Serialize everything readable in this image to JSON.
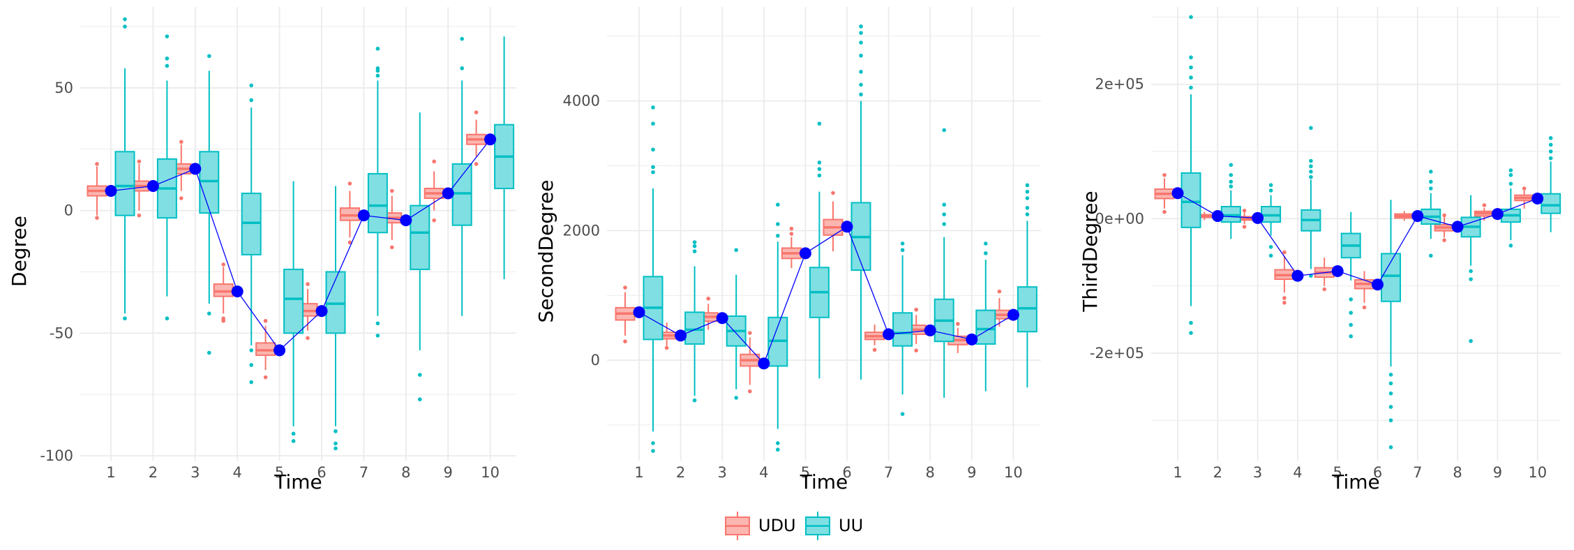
{
  "colors": {
    "UDU": "#F8766D",
    "UDU_fill": "#FBB6B1",
    "UU": "#00BFC4",
    "UU_fill": "#80DFE2",
    "mean_line": "#0000FF",
    "grid": "#EBEBEB"
  },
  "legend": {
    "placement": "bottom",
    "items": [
      {
        "key": "UDU",
        "label": "UDU"
      },
      {
        "key": "UU",
        "label": "UU"
      }
    ]
  },
  "chart_data": [
    {
      "type": "boxplot",
      "xlabel": "Time",
      "ylabel": "Degree",
      "categories": [
        "1",
        "2",
        "3",
        "4",
        "5",
        "6",
        "7",
        "8",
        "9",
        "10"
      ],
      "ylim": [
        -102,
        83
      ],
      "yticks": [
        -100,
        -50,
        0,
        50
      ],
      "ytick_labels": [
        "-100",
        "-50",
        "0",
        "50"
      ],
      "grid": true,
      "series": [
        {
          "name": "UDU",
          "boxes": [
            {
              "lw": -2,
              "q1": 6,
              "med": 8,
              "q3": 10,
              "uw": 18,
              "outliers": [
                -3,
                19
              ]
            },
            {
              "lw": 0,
              "q1": 8,
              "med": 10,
              "q3": 12,
              "uw": 19,
              "outliers": [
                -2,
                20
              ]
            },
            {
              "lw": 8,
              "q1": 15,
              "med": 17,
              "q3": 19,
              "uw": 27,
              "outliers": [
                5,
                28
              ]
            },
            {
              "lw": -42,
              "q1": -35,
              "med": -33,
              "q3": -30,
              "uw": -23,
              "outliers": [
                -45,
                -44,
                -22
              ]
            },
            {
              "lw": -65,
              "q1": -59,
              "med": -57,
              "q3": -54,
              "uw": -47,
              "outliers": [
                -68,
                -45
              ]
            },
            {
              "lw": -49,
              "q1": -43,
              "med": -41,
              "q3": -38,
              "uw": -32,
              "outliers": [
                -52,
                -30
              ]
            },
            {
              "lw": -11,
              "q1": -4,
              "med": -2,
              "q3": 1,
              "uw": 8,
              "outliers": [
                -13,
                11
              ]
            },
            {
              "lw": -12,
              "q1": -5,
              "med": -3,
              "q3": -1,
              "uw": 6,
              "outliers": [
                -15,
                8
              ]
            },
            {
              "lw": 0,
              "q1": 5,
              "med": 7,
              "q3": 9,
              "uw": 16,
              "outliers": [
                -4,
                20
              ]
            },
            {
              "lw": 22,
              "q1": 27,
              "med": 29,
              "q3": 31,
              "uw": 37,
              "outliers": [
                19,
                40
              ]
            }
          ]
        },
        {
          "name": "UU",
          "boxes": [
            {
              "lw": -42,
              "q1": -2,
              "med": 10,
              "q3": 24,
              "uw": 58,
              "outliers": [
                -44,
                75,
                78
              ]
            },
            {
              "lw": -35,
              "q1": -3,
              "med": 9,
              "q3": 21,
              "uw": 53,
              "outliers": [
                -44,
                59,
                62,
                71
              ]
            },
            {
              "lw": -38,
              "q1": -1,
              "med": 12,
              "q3": 24,
              "uw": 57,
              "outliers": [
                -42,
                -58,
                63
              ]
            },
            {
              "lw": -55,
              "q1": -18,
              "med": -5,
              "q3": 7,
              "uw": 42,
              "outliers": [
                -57,
                -63,
                -70,
                45,
                51
              ]
            },
            {
              "lw": -88,
              "q1": -50,
              "med": -36,
              "q3": -24,
              "uw": 12,
              "outliers": [
                -91,
                -94
              ]
            },
            {
              "lw": -88,
              "q1": -50,
              "med": -38,
              "q3": -25,
              "uw": 10,
              "outliers": [
                -90,
                -95,
                -97
              ]
            },
            {
              "lw": -43,
              "q1": -9,
              "med": 2,
              "q3": 15,
              "uw": 53,
              "outliers": [
                -46,
                -51,
                55,
                57,
                58,
                66
              ]
            },
            {
              "lw": -57,
              "q1": -24,
              "med": -9,
              "q3": 2,
              "uw": 40,
              "outliers": [
                -67,
                -77
              ]
            },
            {
              "lw": -43,
              "q1": -6,
              "med": 7,
              "q3": 19,
              "uw": 53,
              "outliers": [
                58,
                70
              ]
            },
            {
              "lw": -28,
              "q1": 9,
              "med": 22,
              "q3": 35,
              "uw": 71,
              "outliers": []
            }
          ]
        }
      ],
      "means": [
        8,
        10,
        17,
        -33,
        -57,
        -41,
        -2,
        -4,
        7,
        29
      ]
    },
    {
      "type": "boxplot",
      "xlabel": "Time",
      "ylabel": "SecondDegree",
      "categories": [
        "1",
        "2",
        "3",
        "4",
        "5",
        "6",
        "7",
        "8",
        "9",
        "10"
      ],
      "ylim": [
        -1550,
        5450
      ],
      "yticks": [
        0,
        2000,
        4000
      ],
      "ytick_labels": [
        "0",
        "2000",
        "4000"
      ],
      "grid": true,
      "series": [
        {
          "name": "UDU",
          "boxes": [
            {
              "lw": 380,
              "q1": 620,
              "med": 720,
              "q3": 810,
              "uw": 1050,
              "outliers": [
                290,
                1120
              ]
            },
            {
              "lw": 220,
              "q1": 330,
              "med": 380,
              "q3": 430,
              "uw": 580,
              "outliers": [
                190
              ]
            },
            {
              "lw": 470,
              "q1": 600,
              "med": 670,
              "q3": 730,
              "uw": 870,
              "outliers": [
                950
              ]
            },
            {
              "lw": -380,
              "q1": -90,
              "med": 0,
              "q3": 90,
              "uw": 350,
              "outliers": [
                -480,
                420
              ]
            },
            {
              "lw": 1420,
              "q1": 1570,
              "med": 1650,
              "q3": 1730,
              "uw": 1900,
              "outliers": [
                1950,
                2030
              ]
            },
            {
              "lw": 1680,
              "q1": 1930,
              "med": 2050,
              "q3": 2170,
              "uw": 2450,
              "outliers": [
                2580
              ]
            },
            {
              "lw": 230,
              "q1": 320,
              "med": 370,
              "q3": 430,
              "uw": 550,
              "outliers": [
                160
              ]
            },
            {
              "lw": 250,
              "q1": 400,
              "med": 470,
              "q3": 540,
              "uw": 700,
              "outliers": [
                150,
                780
              ]
            },
            {
              "lw": 110,
              "q1": 240,
              "med": 310,
              "q3": 370,
              "uw": 500,
              "outliers": [
                560
              ]
            },
            {
              "lw": 520,
              "q1": 640,
              "med": 700,
              "q3": 770,
              "uw": 960,
              "outliers": [
                1060
              ]
            }
          ]
        },
        {
          "name": "UU",
          "boxes": [
            {
              "lw": -1100,
              "q1": 320,
              "med": 810,
              "q3": 1290,
              "uw": 2650,
              "outliers": [
                -1280,
                -1400,
                2900,
                2980,
                3250,
                3650,
                3900
              ]
            },
            {
              "lw": -550,
              "q1": 250,
              "med": 470,
              "q3": 740,
              "uw": 1450,
              "outliers": [
                -620,
                1680,
                1760,
                1820
              ]
            },
            {
              "lw": -450,
              "q1": 220,
              "med": 450,
              "q3": 680,
              "uw": 1320,
              "outliers": [
                -580,
                1700
              ]
            },
            {
              "lw": -1060,
              "q1": -90,
              "med": 300,
              "q3": 660,
              "uw": 1830,
              "outliers": [
                -1280,
                -1380,
                1920,
                2100,
                2400
              ]
            },
            {
              "lw": -280,
              "q1": 660,
              "med": 1050,
              "q3": 1430,
              "uw": 2600,
              "outliers": [
                2850,
                2950,
                3050,
                3650
              ]
            },
            {
              "lw": -300,
              "q1": 1390,
              "med": 1900,
              "q3": 2430,
              "uw": 4000,
              "outliers": [
                4100,
                4250,
                4450,
                4700,
                4900,
                5050,
                5150
              ]
            },
            {
              "lw": -530,
              "q1": 220,
              "med": 420,
              "q3": 730,
              "uw": 1620,
              "outliers": [
                -830,
                1700,
                1800
              ]
            },
            {
              "lw": -580,
              "q1": 290,
              "med": 610,
              "q3": 940,
              "uw": 1900,
              "outliers": [
                2100,
                2250,
                2400,
                3550
              ]
            },
            {
              "lw": -480,
              "q1": 250,
              "med": 480,
              "q3": 770,
              "uw": 1550,
              "outliers": [
                1650,
                1800
              ]
            },
            {
              "lw": -420,
              "q1": 440,
              "med": 800,
              "q3": 1130,
              "uw": 2150,
              "outliers": [
                2250,
                2350,
                2500,
                2600,
                2700
              ]
            }
          ]
        }
      ],
      "means": [
        740,
        380,
        650,
        -50,
        1650,
        2060,
        400,
        460,
        320,
        700
      ]
    },
    {
      "type": "boxplot",
      "xlabel": "Time",
      "ylabel": "ThirdDegree",
      "categories": [
        "1",
        "2",
        "3",
        "4",
        "5",
        "6",
        "7",
        "8",
        "9",
        "10"
      ],
      "ylim": [
        -360000,
        315000
      ],
      "yticks": [
        -200000,
        0,
        200000
      ],
      "ytick_labels": [
        "-2e+05",
        "0e+00",
        "2e+05"
      ],
      "grid": true,
      "series": [
        {
          "name": "UDU",
          "boxes": [
            {
              "lw": 15000,
              "q1": 30000,
              "med": 37000,
              "q3": 44000,
              "uw": 60000,
              "outliers": [
                10000,
                65000
              ]
            },
            {
              "lw": -2000,
              "q1": 2000,
              "med": 4000,
              "q3": 6000,
              "uw": 10000,
              "outliers": []
            },
            {
              "lw": -8000,
              "q1": -2000,
              "med": 0,
              "q3": 3000,
              "uw": 9000,
              "outliers": [
                -12000,
                12000
              ]
            },
            {
              "lw": -110000,
              "q1": -90000,
              "med": -84000,
              "q3": -76000,
              "uw": -55000,
              "outliers": [
                -118000,
                -125000,
                -50000
              ]
            },
            {
              "lw": -100000,
              "q1": -87000,
              "med": -80000,
              "q3": -73000,
              "uw": -58000,
              "outliers": [
                -105000
              ]
            },
            {
              "lw": -125000,
              "q1": -104000,
              "med": -97000,
              "q3": -91000,
              "uw": -78000,
              "outliers": [
                -132000
              ]
            },
            {
              "lw": -3000,
              "q1": 1000,
              "med": 4000,
              "q3": 7000,
              "uw": 11000,
              "outliers": []
            },
            {
              "lw": -28000,
              "q1": -18000,
              "med": -13000,
              "q3": -9000,
              "uw": 2000,
              "outliers": [
                -32000,
                5000
              ]
            },
            {
              "lw": -3000,
              "q1": 4000,
              "med": 8000,
              "q3": 11000,
              "uw": 16000,
              "outliers": [
                20000
              ]
            },
            {
              "lw": 15000,
              "q1": 27000,
              "med": 31000,
              "q3": 35000,
              "uw": 42000,
              "outliers": [
                45000
              ]
            }
          ]
        },
        {
          "name": "UU",
          "boxes": [
            {
              "lw": -130000,
              "q1": -13000,
              "med": 25000,
              "q3": 68000,
              "uw": 185000,
              "outliers": [
                -155000,
                -170000,
                195000,
                210000,
                225000,
                240000,
                300000
              ]
            },
            {
              "lw": -30000,
              "q1": -5000,
              "med": 5000,
              "q3": 18000,
              "uw": 42000,
              "outliers": [
                48000,
                55000,
                65000,
                80000
              ]
            },
            {
              "lw": -25000,
              "q1": -5000,
              "med": 5000,
              "q3": 18000,
              "uw": 35000,
              "outliers": [
                -42000,
                -55000,
                42000,
                50000
              ]
            },
            {
              "lw": -75000,
              "q1": -18000,
              "med": -2000,
              "q3": 13000,
              "uw": 58000,
              "outliers": [
                -85000,
                62000,
                70000,
                78000,
                86000,
                135000
              ]
            },
            {
              "lw": -92000,
              "q1": -58000,
              "med": -40000,
              "q3": -22000,
              "uw": 10000,
              "outliers": [
                -120000,
                -140000,
                -158000,
                -175000
              ]
            },
            {
              "lw": -220000,
              "q1": -123000,
              "med": -85000,
              "q3": -52000,
              "uw": 28000,
              "outliers": [
                -232000,
                -245000,
                -260000,
                -280000,
                -300000,
                -340000
              ]
            },
            {
              "lw": -30000,
              "q1": -8000,
              "med": 3000,
              "q3": 14000,
              "uw": 38000,
              "outliers": [
                -55000,
                45000,
                55000,
                70000
              ]
            },
            {
              "lw": -70000,
              "q1": -27000,
              "med": -12000,
              "q3": 2000,
              "uw": 35000,
              "outliers": [
                -78000,
                -90000,
                -182000
              ]
            },
            {
              "lw": -32000,
              "q1": -5000,
              "med": 5000,
              "q3": 14000,
              "uw": 45000,
              "outliers": [
                -40000,
                52000,
                65000,
                72000
              ]
            },
            {
              "lw": -20000,
              "q1": 8000,
              "med": 20000,
              "q3": 37000,
              "uw": 85000,
              "outliers": [
                90000,
                100000,
                110000,
                120000
              ]
            }
          ]
        }
      ],
      "means": [
        38000,
        4000,
        1000,
        -85000,
        -78000,
        -98000,
        4000,
        -12000,
        7000,
        30000
      ]
    }
  ]
}
